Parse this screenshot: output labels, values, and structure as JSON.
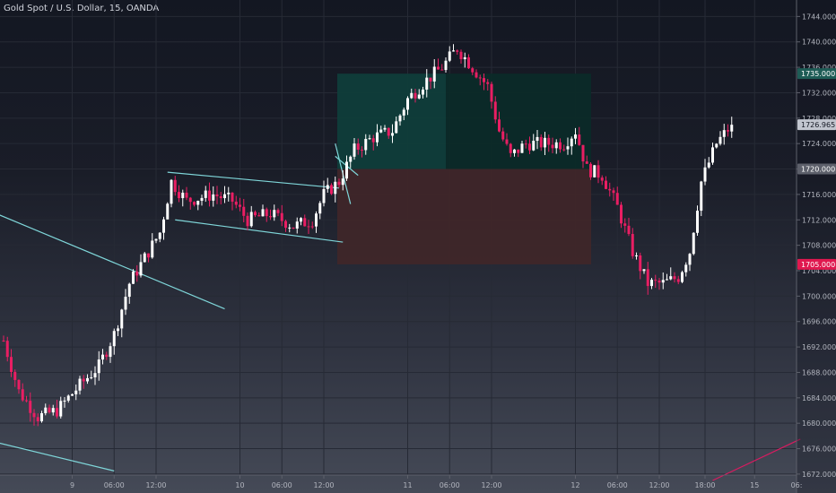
{
  "chart_data": {
    "type": "candlestick",
    "title": "Gold Spot / U.S. Dollar, 15, OANDA",
    "ylim": [
      1671,
      1748
    ],
    "y_ticks": [
      1672,
      1676,
      1680,
      1684,
      1688,
      1692,
      1696,
      1700,
      1704,
      1708,
      1712,
      1716,
      1720,
      1724,
      1728,
      1732,
      1736,
      1740,
      1744
    ],
    "y_tick_labels": [
      "1672.000",
      "1676.000",
      "1680.000",
      "1684.000",
      "1688.000",
      "1692.000",
      "1696.000",
      "1700.000",
      "1704.000",
      "1708.000",
      "1712.000",
      "1716.000",
      "1720.000",
      "1724.000",
      "1728.000",
      "1732.000",
      "1736.000",
      "1740.000",
      "1744.000"
    ],
    "x_ticks": [
      "9",
      "06:00",
      "12:00",
      "10",
      "06:00",
      "12:00",
      "11",
      "06:00",
      "12:00",
      "12",
      "06:00",
      "12:00",
      "18:00",
      "15",
      "06:"
    ],
    "price_labels": [
      {
        "value": 1735.0,
        "text": "1735.000",
        "color": "#1e5c56"
      },
      {
        "value": 1726.965,
        "text": "1726.965",
        "color": "#c2c6cf"
      },
      {
        "value": 1720.0,
        "text": "1720.000",
        "color": "#5d606b"
      },
      {
        "value": 1705.0,
        "text": "1705.000",
        "color": "#e0184f"
      }
    ],
    "position": {
      "type": "long",
      "target": 1735.0,
      "entry": 1720.0,
      "stop": 1705.0,
      "profit_color": "#0f3d3a",
      "profit_color_dark": "#0b2a28",
      "loss_color": "#3f2629"
    },
    "colors": {
      "up": "#ffffff",
      "down": "#e91e63",
      "trendline": "#7fd6d9",
      "trendline_red": "#d81b60",
      "grid": "#262a35",
      "axis_text": "#b2b5be"
    },
    "anchors": [
      {
        "t": 0,
        "p": 1693
      },
      {
        "t": 4,
        "p": 1685
      },
      {
        "t": 9,
        "p": 1681
      },
      {
        "t": 14,
        "p": 1682
      },
      {
        "t": 20,
        "p": 1686
      },
      {
        "t": 25,
        "p": 1689
      },
      {
        "t": 29,
        "p": 1694
      },
      {
        "t": 33,
        "p": 1702
      },
      {
        "t": 37,
        "p": 1706
      },
      {
        "t": 41,
        "p": 1710
      },
      {
        "t": 44,
        "p": 1718
      },
      {
        "t": 48,
        "p": 1715
      },
      {
        "t": 55,
        "p": 1716
      },
      {
        "t": 60,
        "p": 1715
      },
      {
        "t": 64,
        "p": 1712
      },
      {
        "t": 70,
        "p": 1713
      },
      {
        "t": 76,
        "p": 1711
      },
      {
        "t": 81,
        "p": 1712
      },
      {
        "t": 84,
        "p": 1716
      },
      {
        "t": 88,
        "p": 1718
      },
      {
        "t": 92,
        "p": 1723
      },
      {
        "t": 97,
        "p": 1725
      },
      {
        "t": 102,
        "p": 1726
      },
      {
        "t": 106,
        "p": 1731
      },
      {
        "t": 111,
        "p": 1734
      },
      {
        "t": 115,
        "p": 1736
      },
      {
        "t": 119,
        "p": 1739
      },
      {
        "t": 123,
        "p": 1736
      },
      {
        "t": 127,
        "p": 1733
      },
      {
        "t": 130,
        "p": 1726
      },
      {
        "t": 133,
        "p": 1722
      },
      {
        "t": 137,
        "p": 1724
      },
      {
        "t": 142,
        "p": 1724
      },
      {
        "t": 147,
        "p": 1724
      },
      {
        "t": 150,
        "p": 1726
      },
      {
        "t": 153,
        "p": 1720
      },
      {
        "t": 157,
        "p": 1719
      },
      {
        "t": 161,
        "p": 1714
      },
      {
        "t": 165,
        "p": 1707
      },
      {
        "t": 169,
        "p": 1702
      },
      {
        "t": 173,
        "p": 1702
      },
      {
        "t": 177,
        "p": 1703
      },
      {
        "t": 180,
        "p": 1707
      },
      {
        "t": 183,
        "p": 1718
      },
      {
        "t": 187,
        "p": 1724
      },
      {
        "t": 191,
        "p": 1726.965
      }
    ],
    "bars": 192,
    "x_tick_bar_index": [
      18,
      29,
      40,
      62,
      73,
      84,
      106,
      117,
      128,
      150,
      161,
      172,
      184,
      197,
      208
    ],
    "trendlines": [
      {
        "from": [
          -2,
          1713
        ],
        "to": [
          58,
          1698
        ],
        "color": "trendline"
      },
      {
        "from": [
          -2,
          1677
        ],
        "to": [
          29,
          1672.5
        ],
        "color": "trendline"
      },
      {
        "from": [
          43,
          1719.5
        ],
        "to": [
          88,
          1717
        ],
        "color": "trendline"
      },
      {
        "from": [
          45,
          1712
        ],
        "to": [
          89,
          1708.5
        ],
        "color": "trendline"
      },
      {
        "from": [
          87,
          1724
        ],
        "to": [
          91,
          1714.5
        ],
        "color": "trendline"
      },
      {
        "from": [
          87,
          1722
        ],
        "to": [
          93,
          1719
        ],
        "color": "trendline"
      },
      {
        "from": [
          186,
          1671
        ],
        "to": [
          209,
          1677.5
        ],
        "color": "trendline_red"
      }
    ]
  }
}
